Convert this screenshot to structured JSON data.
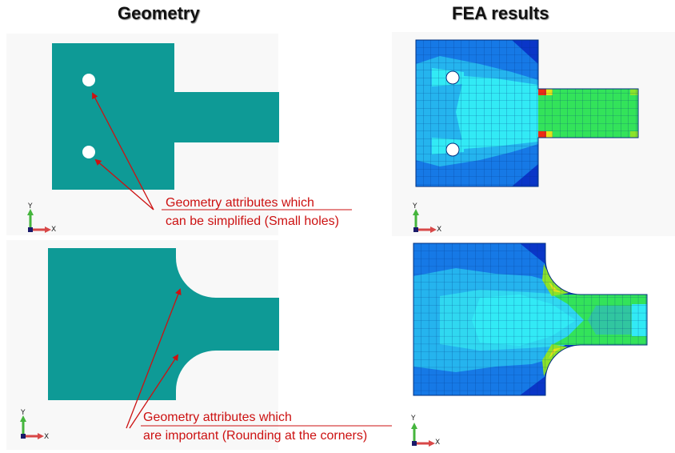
{
  "titles": {
    "left": "Geometry",
    "right": "FEA results"
  },
  "annotations": {
    "top": [
      "Geometry attributes which",
      "can be simplified (Small holes)"
    ],
    "bottom": [
      "Geometry attributes which",
      "are important (Rounding at the corners)"
    ]
  },
  "axes": {
    "y": "Y",
    "x": "X"
  },
  "colors": {
    "geometry_fill": "#0e9a96",
    "annotation_red": "#cc1111",
    "fea_dark_blue": "#0a36c8",
    "fea_blue": "#1679e6",
    "fea_light_blue": "#25b4ee",
    "fea_cyan": "#32eaf5",
    "fea_green": "#33e35a",
    "fea_yellow": "#e2e21a",
    "fea_red": "#ee2a12"
  }
}
